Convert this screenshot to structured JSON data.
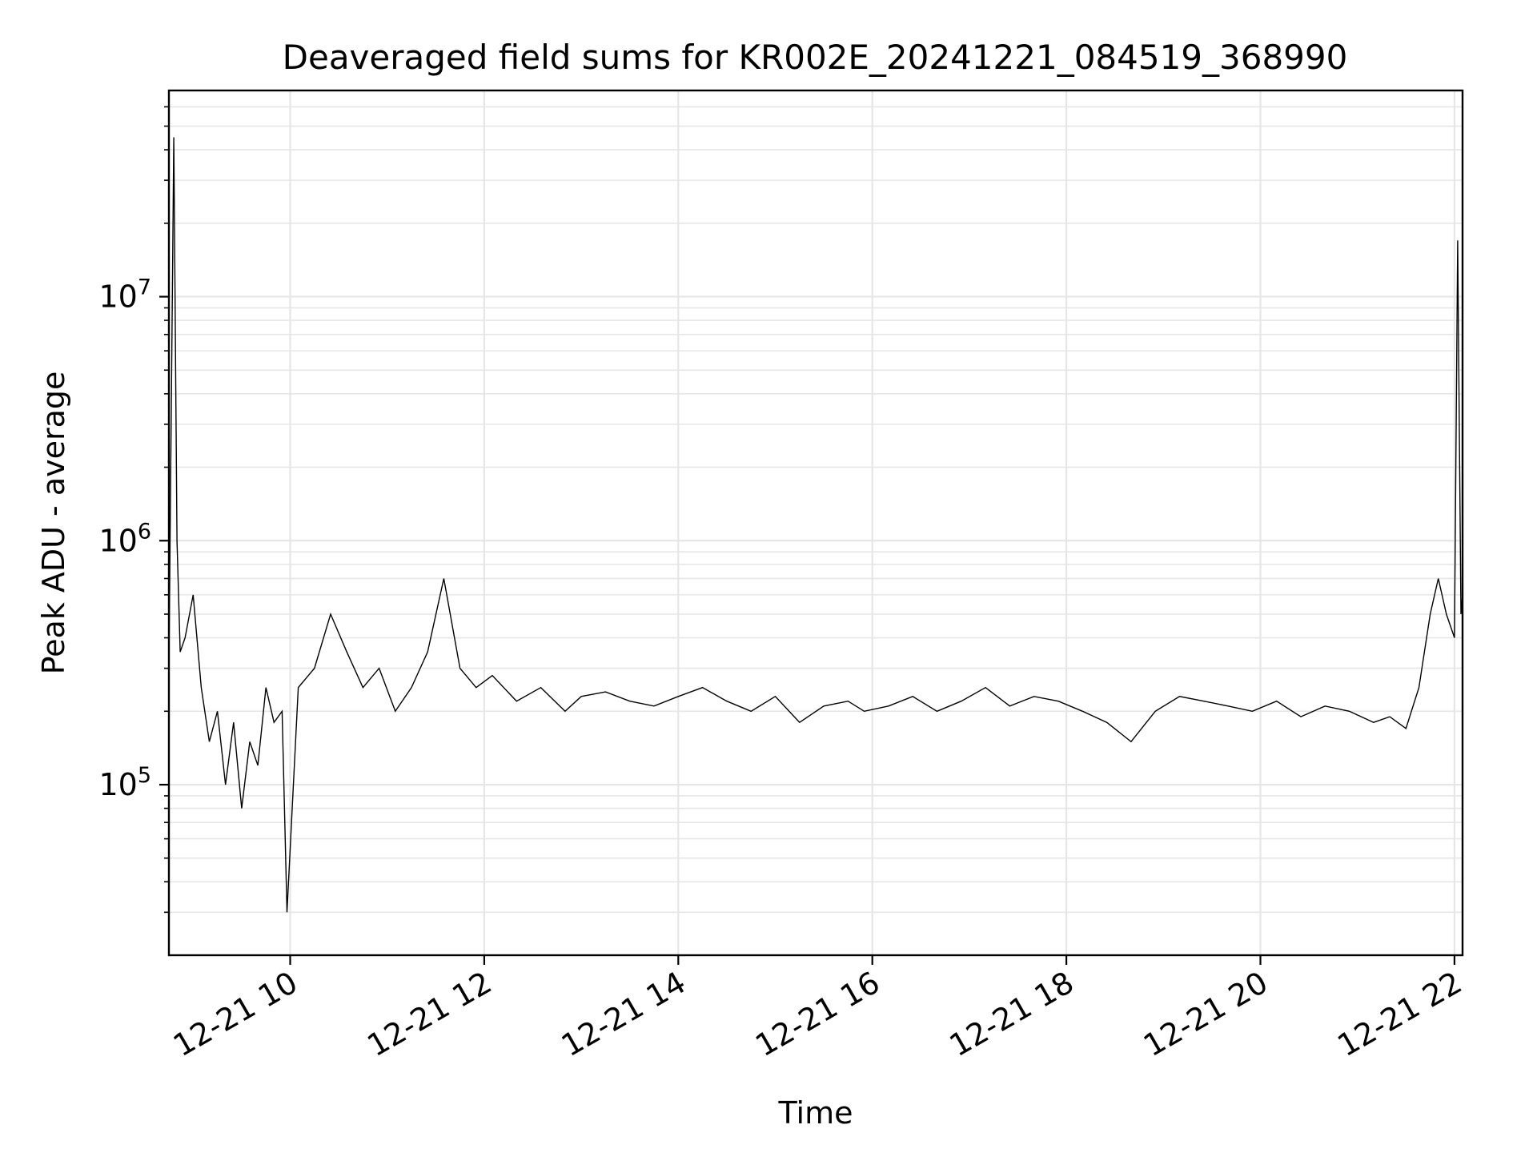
{
  "chart_data": {
    "type": "line",
    "title": "Deaveraged field sums for KR002E_20241221_084519_368990",
    "xlabel": "Time",
    "ylabel": "Peak ADU - average",
    "x_range": [
      "2024-12-21 08:45",
      "2024-12-21 22:05"
    ],
    "y_scale": "log",
    "ylim": [
      20000,
      70000000
    ],
    "x_ticks": [
      {
        "time": "2024-12-21 10:00",
        "label": "12-21 10"
      },
      {
        "time": "2024-12-21 12:00",
        "label": "12-21 12"
      },
      {
        "time": "2024-12-21 14:00",
        "label": "12-21 14"
      },
      {
        "time": "2024-12-21 16:00",
        "label": "12-21 16"
      },
      {
        "time": "2024-12-21 18:00",
        "label": "12-21 18"
      },
      {
        "time": "2024-12-21 20:00",
        "label": "12-21 20"
      },
      {
        "time": "2024-12-21 22:00",
        "label": "12-21 22"
      }
    ],
    "y_ticks": [
      {
        "value": 100000,
        "base": "10",
        "exp": "5"
      },
      {
        "value": 1000000,
        "base": "10",
        "exp": "6"
      },
      {
        "value": 10000000,
        "base": "10",
        "exp": "7"
      }
    ],
    "grid": true,
    "line_color": "#000000",
    "grid_color": "#e6e6e6",
    "series": [
      {
        "x": [
          "2024-12-21 08:45",
          "2024-12-21 08:48",
          "2024-12-21 08:50",
          "2024-12-21 08:52",
          "2024-12-21 08:55",
          "2024-12-21 09:00",
          "2024-12-21 09:05",
          "2024-12-21 09:10",
          "2024-12-21 09:15",
          "2024-12-21 09:20",
          "2024-12-21 09:25",
          "2024-12-21 09:30",
          "2024-12-21 09:35",
          "2024-12-21 09:40",
          "2024-12-21 09:45",
          "2024-12-21 09:50",
          "2024-12-21 09:55",
          "2024-12-21 09:58",
          "2024-12-21 10:05",
          "2024-12-21 10:15",
          "2024-12-21 10:25",
          "2024-12-21 10:35",
          "2024-12-21 10:45",
          "2024-12-21 10:55",
          "2024-12-21 11:05",
          "2024-12-21 11:15",
          "2024-12-21 11:25",
          "2024-12-21 11:35",
          "2024-12-21 11:45",
          "2024-12-21 11:55",
          "2024-12-21 12:05",
          "2024-12-21 12:20",
          "2024-12-21 12:35",
          "2024-12-21 12:50",
          "2024-12-21 13:00",
          "2024-12-21 13:15",
          "2024-12-21 13:30",
          "2024-12-21 13:45",
          "2024-12-21 14:00",
          "2024-12-21 14:15",
          "2024-12-21 14:30",
          "2024-12-21 14:45",
          "2024-12-21 15:00",
          "2024-12-21 15:15",
          "2024-12-21 15:30",
          "2024-12-21 15:45",
          "2024-12-21 15:55",
          "2024-12-21 16:10",
          "2024-12-21 16:25",
          "2024-12-21 16:40",
          "2024-12-21 16:55",
          "2024-12-21 17:10",
          "2024-12-21 17:25",
          "2024-12-21 17:40",
          "2024-12-21 17:55",
          "2024-12-21 18:10",
          "2024-12-21 18:25",
          "2024-12-21 18:40",
          "2024-12-21 18:55",
          "2024-12-21 19:10",
          "2024-12-21 19:25",
          "2024-12-21 19:40",
          "2024-12-21 19:55",
          "2024-12-21 20:10",
          "2024-12-21 20:25",
          "2024-12-21 20:40",
          "2024-12-21 20:55",
          "2024-12-21 21:10",
          "2024-12-21 21:20",
          "2024-12-21 21:30",
          "2024-12-21 21:38",
          "2024-12-21 21:45",
          "2024-12-21 21:50",
          "2024-12-21 21:55",
          "2024-12-21 22:00",
          "2024-12-21 22:02",
          "2024-12-21 22:04",
          "2024-12-21 22:05"
        ],
        "y": [
          300000,
          45000000,
          1000000,
          350000,
          400000,
          600000,
          250000,
          150000,
          200000,
          100000,
          180000,
          80000,
          150000,
          120000,
          250000,
          180000,
          200000,
          30000,
          250000,
          300000,
          500000,
          350000,
          250000,
          300000,
          200000,
          250000,
          350000,
          700000,
          300000,
          250000,
          280000,
          220000,
          250000,
          200000,
          230000,
          240000,
          220000,
          210000,
          230000,
          250000,
          220000,
          200000,
          230000,
          180000,
          210000,
          220000,
          200000,
          210000,
          230000,
          200000,
          220000,
          250000,
          210000,
          230000,
          220000,
          200000,
          180000,
          150000,
          200000,
          230000,
          220000,
          210000,
          200000,
          220000,
          190000,
          210000,
          200000,
          180000,
          190000,
          170000,
          250000,
          500000,
          700000,
          500000,
          400000,
          17000000,
          500000,
          600000
        ]
      }
    ]
  }
}
